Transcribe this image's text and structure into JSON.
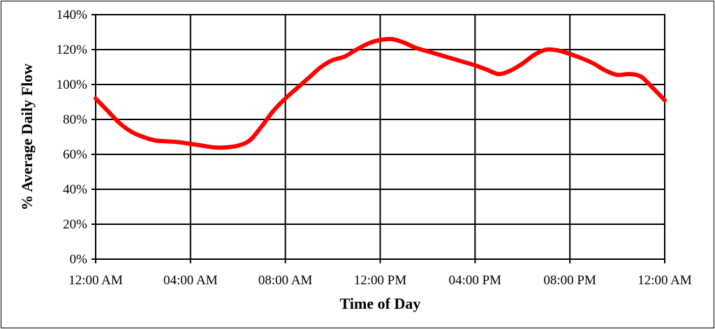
{
  "chart_data": {
    "type": "line",
    "title": "",
    "xlabel": "Time of Day",
    "ylabel": "% Average Daily Flow",
    "x_tick_labels": [
      "12:00 AM",
      "04:00 AM",
      "08:00 AM",
      "12:00 PM",
      "04:00 PM",
      "08:00 PM",
      "12:00 AM"
    ],
    "y_tick_labels": [
      "0%",
      "20%",
      "40%",
      "60%",
      "80%",
      "100%",
      "120%",
      "140%"
    ],
    "xlim": [
      0,
      24
    ],
    "ylim": [
      0,
      140
    ],
    "grid": true,
    "legend": "none",
    "x_unit": "hours",
    "series": [
      {
        "color": "#ff0000",
        "x": [
          0,
          0.5,
          1,
          1.5,
          2,
          2.5,
          3,
          3.5,
          4,
          4.5,
          5,
          5.5,
          6,
          6.5,
          7,
          7.5,
          8,
          8.5,
          9,
          9.5,
          10,
          10.5,
          11,
          11.5,
          12,
          12.5,
          13,
          13.5,
          14,
          14.5,
          15,
          15.5,
          16,
          16.5,
          17,
          17.5,
          18,
          18.5,
          19,
          19.5,
          20,
          20.5,
          21,
          21.5,
          22,
          22.5,
          23,
          23.5,
          24
        ],
        "values": [
          92,
          85,
          78,
          73,
          70,
          68,
          67.5,
          67,
          66,
          65,
          64,
          64,
          65,
          68,
          76,
          85,
          92,
          98,
          104,
          110,
          114,
          116,
          120,
          123.5,
          125.5,
          126,
          124,
          121,
          119,
          117,
          115,
          113,
          111,
          108.5,
          106,
          108,
          112,
          117,
          120,
          119.5,
          117.5,
          115,
          112,
          108,
          105.5,
          106,
          104.5,
          98,
          91
        ]
      }
    ]
  }
}
